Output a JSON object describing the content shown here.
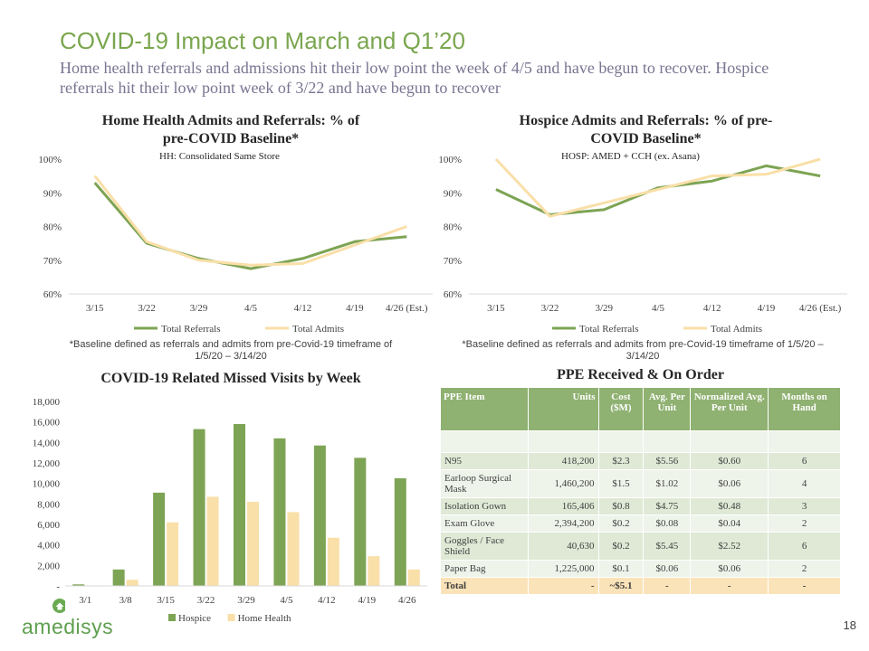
{
  "title": "COVID-19 Impact on March and Q1’20",
  "subtitle": "Home health referrals and admissions hit their low point the week of 4/5 and have begun to recover. Hospice referrals hit their low point week of 3/22 and have begun to recover",
  "chart_data": [
    {
      "type": "line",
      "title": "Home Health Admits and Referrals: % of pre-COVID Baseline*",
      "title_line1": "Home Health Admits and Referrals: % of",
      "title_line2": "pre-COVID Baseline*",
      "subtitle": "HH: Consolidated Same Store",
      "categories": [
        "3/15",
        "3/22",
        "3/29",
        "4/5",
        "4/12",
        "4/19",
        "4/26 (Est.)"
      ],
      "series": [
        {
          "name": "Total Referrals",
          "values": [
            93,
            75,
            70.5,
            67.5,
            70.5,
            75.5,
            77
          ],
          "color": "#7da454"
        },
        {
          "name": "Total Admits",
          "values": [
            95,
            75.5,
            70,
            68.5,
            69,
            74.5,
            80
          ],
          "color": "#f9dfa8"
        }
      ],
      "ylim": [
        60,
        100
      ],
      "yticks": [
        "60%",
        "70%",
        "80%",
        "90%",
        "100%"
      ],
      "legend": "bottom",
      "footnote": "*Baseline defined as referrals and admits from pre-Covid-19 timeframe of 1/5/20 – 3/14/20"
    },
    {
      "type": "line",
      "title": "Hospice Admits and Referrals: % of pre-COVID Baseline*",
      "title_line1": "Hospice Admits and Referrals: % of pre-",
      "title_line2": "COVID Baseline*",
      "subtitle": "HOSP: AMED + CCH (ex. Asana)",
      "categories": [
        "3/15",
        "3/22",
        "3/29",
        "4/5",
        "4/12",
        "4/19",
        "4/26 (Est.)"
      ],
      "series": [
        {
          "name": "Total Referrals",
          "values": [
            91,
            83.5,
            85,
            91.5,
            93.5,
            98,
            95
          ],
          "color": "#7da454"
        },
        {
          "name": "Total Admits",
          "values": [
            100,
            83,
            87,
            91,
            95,
            95.5,
            100
          ],
          "color": "#f9dfa8"
        }
      ],
      "ylim": [
        60,
        100
      ],
      "yticks": [
        "60%",
        "70%",
        "80%",
        "90%",
        "100%"
      ],
      "legend": "bottom",
      "footnote": "*Baseline defined as referrals and admits from pre-Covid-19 timeframe of 1/5/20 – 3/14/20"
    },
    {
      "type": "bar",
      "title": "COVID-19 Related Missed Visits by Week",
      "categories": [
        "3/1",
        "3/8",
        "3/15",
        "3/22",
        "3/29",
        "4/5",
        "4/12",
        "4/19",
        "4/26"
      ],
      "series": [
        {
          "name": "Hospice",
          "values": [
            150,
            1600,
            9100,
            15300,
            15800,
            14400,
            13700,
            12500,
            10500
          ],
          "color": "#7da454"
        },
        {
          "name": "Home Health",
          "values": [
            50,
            600,
            6200,
            8700,
            8200,
            7200,
            4700,
            2900,
            1600
          ],
          "color": "#f9dfa8"
        }
      ],
      "ylim": [
        0,
        18000
      ],
      "yticks": [
        "-",
        "2,000",
        "4,000",
        "6,000",
        "8,000",
        "10,000",
        "12,000",
        "14,000",
        "16,000",
        "18,000"
      ],
      "legend": "bottom"
    }
  ],
  "ppe": {
    "title": "PPE Received & On Order",
    "headers": [
      "PPE Item",
      "Units",
      "Cost ($M)",
      "Avg. Per Unit",
      "Normalized Avg. Per Unit",
      "Months on Hand"
    ],
    "rows": [
      [
        "N95",
        "418,200",
        "$2.3",
        "$5.56",
        "$0.60",
        "6"
      ],
      [
        "Earloop Surgical Mask",
        "1,460,200",
        "$1.5",
        "$1.02",
        "$0.06",
        "4"
      ],
      [
        "Isolation Gown",
        "165,406",
        "$0.8",
        "$4.75",
        "$0.48",
        "3"
      ],
      [
        "Exam Glove",
        "2,394,200",
        "$0.2",
        "$0.08",
        "$0.04",
        "2"
      ],
      [
        "Goggles / Face Shield",
        "40,630",
        "$0.2",
        "$5.45",
        "$2.52",
        "6"
      ],
      [
        "Paper Bag",
        "1,225,000",
        "$0.1",
        "$0.06",
        "$0.06",
        "2"
      ]
    ],
    "total": [
      "Total",
      "-",
      "~$5.1",
      "-",
      "-",
      "-"
    ]
  },
  "logo_text": "amedisys",
  "page_number": "18",
  "colors": {
    "title": "#7aa64f",
    "subtitle": "#7a7491",
    "green": "#7da454",
    "cream": "#f9dfa8"
  }
}
